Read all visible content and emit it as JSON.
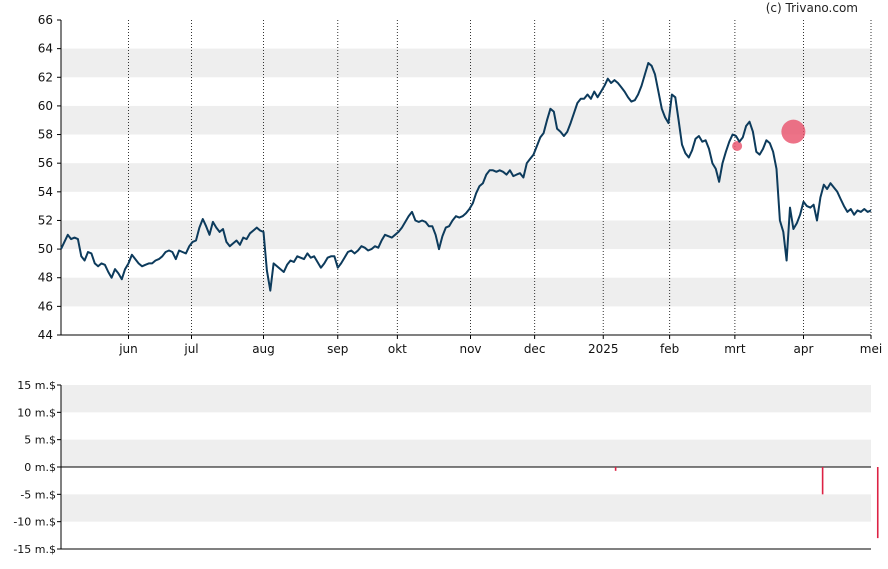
{
  "credit": "(c) Trivano.com",
  "colors": {
    "line": "#0d3b5c",
    "band": "#eeeeee",
    "axis": "#000000",
    "marker": "#e8506a",
    "bar": "#dd2244",
    "text": "#111111"
  },
  "chart_data": [
    {
      "type": "line",
      "ylim": [
        44,
        66
      ],
      "yticks": [
        "66",
        "64",
        "62",
        "60",
        "58",
        "56",
        "54",
        "52",
        "50",
        "48",
        "46",
        "44"
      ],
      "xticks": [
        "jun",
        "jul",
        "aug",
        "sep",
        "okt",
        "nov",
        "dec",
        "2025",
        "feb",
        "mrt",
        "apr",
        "mei"
      ],
      "grid": "vertical dotted at month ticks, alternating horizontal bands",
      "series": [
        {
          "values": [
            [
              0,
              50.0
            ],
            [
              3,
              50.5
            ],
            [
              6,
              51.0
            ],
            [
              9,
              50.7
            ],
            [
              12,
              50.8
            ],
            [
              15,
              50.7
            ],
            [
              18,
              49.5
            ],
            [
              21,
              49.2
            ],
            [
              24,
              49.8
            ],
            [
              27,
              49.7
            ],
            [
              30,
              49.0
            ],
            [
              33,
              48.8
            ],
            [
              36,
              49.0
            ],
            [
              39,
              48.9
            ],
            [
              42,
              48.4
            ],
            [
              45,
              48.0
            ],
            [
              48,
              48.6
            ],
            [
              51,
              48.3
            ],
            [
              54,
              47.9
            ],
            [
              57,
              48.6
            ],
            [
              60,
              49.0
            ],
            [
              63,
              49.6
            ],
            [
              66,
              49.3
            ],
            [
              69,
              49.0
            ],
            [
              72,
              48.8
            ],
            [
              75,
              48.9
            ],
            [
              78,
              49.0
            ],
            [
              81,
              49.0
            ],
            [
              84,
              49.2
            ],
            [
              87,
              49.3
            ],
            [
              90,
              49.5
            ],
            [
              93,
              49.8
            ],
            [
              96,
              49.9
            ],
            [
              99,
              49.8
            ],
            [
              102,
              49.3
            ],
            [
              105,
              49.9
            ],
            [
              108,
              49.8
            ],
            [
              111,
              49.7
            ],
            [
              114,
              50.2
            ],
            [
              117,
              50.5
            ],
            [
              120,
              50.6
            ],
            [
              123,
              51.5
            ],
            [
              126,
              52.1
            ],
            [
              129,
              51.6
            ],
            [
              132,
              51.0
            ],
            [
              135,
              51.9
            ],
            [
              138,
              51.5
            ],
            [
              141,
              51.2
            ],
            [
              144,
              51.4
            ],
            [
              147,
              50.5
            ],
            [
              150,
              50.2
            ],
            [
              153,
              50.4
            ],
            [
              156,
              50.6
            ],
            [
              159,
              50.3
            ],
            [
              162,
              50.8
            ],
            [
              165,
              50.7
            ],
            [
              168,
              51.1
            ],
            [
              171,
              51.3
            ],
            [
              174,
              51.5
            ],
            [
              177,
              51.3
            ],
            [
              180,
              51.2
            ],
            [
              183,
              48.5
            ],
            [
              186,
              47.1
            ],
            [
              189,
              49.0
            ],
            [
              192,
              48.8
            ],
            [
              195,
              48.6
            ],
            [
              198,
              48.4
            ],
            [
              201,
              48.9
            ],
            [
              204,
              49.2
            ],
            [
              207,
              49.1
            ],
            [
              210,
              49.5
            ],
            [
              213,
              49.4
            ],
            [
              216,
              49.3
            ],
            [
              219,
              49.7
            ],
            [
              222,
              49.4
            ],
            [
              225,
              49.5
            ],
            [
              228,
              49.1
            ],
            [
              231,
              48.7
            ],
            [
              234,
              49.0
            ],
            [
              237,
              49.4
            ],
            [
              240,
              49.5
            ],
            [
              243,
              49.5
            ],
            [
              246,
              48.7
            ],
            [
              249,
              49.0
            ],
            [
              252,
              49.4
            ],
            [
              255,
              49.8
            ],
            [
              258,
              49.9
            ],
            [
              261,
              49.7
            ],
            [
              264,
              49.9
            ],
            [
              267,
              50.2
            ],
            [
              270,
              50.1
            ],
            [
              273,
              49.9
            ],
            [
              276,
              50.0
            ],
            [
              279,
              50.2
            ],
            [
              282,
              50.1
            ],
            [
              285,
              50.6
            ],
            [
              288,
              51.0
            ],
            [
              291,
              50.9
            ],
            [
              294,
              50.8
            ],
            [
              297,
              51.0
            ],
            [
              300,
              51.2
            ],
            [
              303,
              51.5
            ],
            [
              306,
              51.9
            ],
            [
              309,
              52.3
            ],
            [
              312,
              52.6
            ],
            [
              315,
              52.0
            ],
            [
              318,
              51.9
            ],
            [
              321,
              52.0
            ],
            [
              324,
              51.9
            ],
            [
              327,
              51.6
            ],
            [
              330,
              51.6
            ],
            [
              333,
              51.0
            ],
            [
              336,
              50.0
            ],
            [
              339,
              50.9
            ],
            [
              342,
              51.5
            ],
            [
              345,
              51.6
            ],
            [
              348,
              52.0
            ],
            [
              351,
              52.3
            ],
            [
              354,
              52.2
            ],
            [
              357,
              52.3
            ],
            [
              360,
              52.5
            ],
            [
              363,
              52.8
            ],
            [
              366,
              53.2
            ],
            [
              369,
              53.9
            ],
            [
              372,
              54.4
            ],
            [
              375,
              54.6
            ],
            [
              378,
              55.2
            ],
            [
              381,
              55.5
            ],
            [
              384,
              55.5
            ],
            [
              387,
              55.4
            ],
            [
              390,
              55.5
            ],
            [
              393,
              55.4
            ],
            [
              396,
              55.2
            ],
            [
              399,
              55.5
            ],
            [
              402,
              55.1
            ],
            [
              405,
              55.2
            ],
            [
              408,
              55.3
            ],
            [
              411,
              55.0
            ],
            [
              414,
              56.0
            ],
            [
              417,
              56.3
            ],
            [
              420,
              56.6
            ],
            [
              423,
              57.2
            ],
            [
              426,
              57.8
            ],
            [
              429,
              58.1
            ],
            [
              432,
              59.0
            ],
            [
              435,
              59.8
            ],
            [
              438,
              59.6
            ],
            [
              441,
              58.4
            ],
            [
              444,
              58.2
            ],
            [
              447,
              57.9
            ],
            [
              450,
              58.2
            ],
            [
              453,
              58.8
            ],
            [
              456,
              59.5
            ],
            [
              459,
              60.2
            ],
            [
              462,
              60.5
            ],
            [
              465,
              60.5
            ],
            [
              468,
              60.8
            ],
            [
              471,
              60.5
            ],
            [
              474,
              61.0
            ],
            [
              477,
              60.6
            ],
            [
              480,
              61.0
            ],
            [
              483,
              61.4
            ],
            [
              486,
              61.9
            ],
            [
              489,
              61.6
            ],
            [
              492,
              61.8
            ],
            [
              495,
              61.6
            ],
            [
              498,
              61.3
            ],
            [
              501,
              61.0
            ],
            [
              504,
              60.6
            ],
            [
              507,
              60.3
            ],
            [
              510,
              60.4
            ],
            [
              513,
              60.8
            ],
            [
              516,
              61.4
            ],
            [
              519,
              62.2
            ],
            [
              522,
              63.0
            ],
            [
              525,
              62.8
            ],
            [
              528,
              62.2
            ],
            [
              531,
              61.0
            ],
            [
              534,
              59.8
            ],
            [
              537,
              59.2
            ],
            [
              540,
              58.8
            ],
            [
              543,
              60.8
            ],
            [
              546,
              60.6
            ],
            [
              549,
              59.0
            ],
            [
              552,
              57.3
            ],
            [
              555,
              56.7
            ],
            [
              558,
              56.4
            ],
            [
              561,
              56.9
            ],
            [
              564,
              57.7
            ],
            [
              567,
              57.9
            ],
            [
              570,
              57.5
            ],
            [
              573,
              57.6
            ],
            [
              576,
              57.0
            ],
            [
              579,
              56.0
            ],
            [
              582,
              55.6
            ],
            [
              585,
              54.7
            ],
            [
              588,
              56.0
            ],
            [
              591,
              56.8
            ],
            [
              594,
              57.5
            ],
            [
              597,
              58.0
            ],
            [
              600,
              57.9
            ],
            [
              603,
              57.5
            ],
            [
              606,
              57.8
            ],
            [
              609,
              58.6
            ],
            [
              612,
              58.9
            ],
            [
              615,
              58.2
            ],
            [
              618,
              56.8
            ],
            [
              621,
              56.6
            ],
            [
              624,
              57.0
            ],
            [
              627,
              57.6
            ],
            [
              630,
              57.4
            ],
            [
              633,
              56.8
            ],
            [
              636,
              55.6
            ],
            [
              639,
              52.0
            ],
            [
              642,
              51.2
            ],
            [
              645,
              49.2
            ],
            [
              648,
              52.9
            ],
            [
              651,
              51.4
            ],
            [
              654,
              51.8
            ],
            [
              657,
              52.4
            ],
            [
              660,
              53.3
            ],
            [
              663,
              53.0
            ],
            [
              666,
              52.9
            ],
            [
              669,
              53.1
            ],
            [
              672,
              52.0
            ],
            [
              675,
              53.6
            ],
            [
              678,
              54.5
            ],
            [
              681,
              54.2
            ],
            [
              684,
              54.6
            ],
            [
              687,
              54.3
            ],
            [
              690,
              54.0
            ],
            [
              693,
              53.5
            ],
            [
              696,
              53.0
            ],
            [
              699,
              52.6
            ],
            [
              702,
              52.8
            ],
            [
              705,
              52.4
            ],
            [
              708,
              52.7
            ],
            [
              711,
              52.6
            ],
            [
              714,
              52.8
            ],
            [
              717,
              52.6
            ],
            [
              720,
              52.7
            ]
          ]
        }
      ],
      "markers": [
        {
          "x": 601,
          "y": 57.2,
          "size": "small"
        },
        {
          "x": 651,
          "y": 58.2,
          "size": "large"
        }
      ]
    },
    {
      "type": "bar",
      "ylim": [
        -15,
        15
      ],
      "yticks": [
        "15 m.$",
        "10 m.$",
        "5 m.$",
        "0 m.$",
        "-5 m.$",
        "-10 m.$",
        "-15 m.$"
      ],
      "grid": "alternating horizontal bands",
      "bars": [
        {
          "x": 493,
          "value": -0.7
        },
        {
          "x": 677,
          "value": -5.0
        },
        {
          "x": 726,
          "value": -13.0
        }
      ]
    }
  ]
}
